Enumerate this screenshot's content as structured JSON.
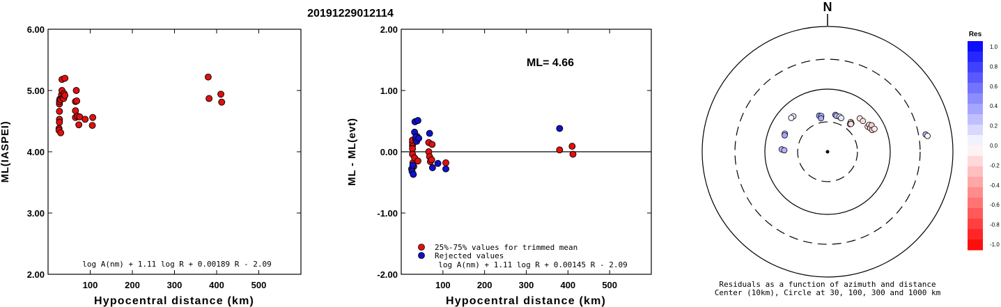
{
  "figure_title": "20191229012114",
  "chart_data": [
    {
      "type": "scatter",
      "xlabel": "Hypocentral distance (km)",
      "ylabel": "ML(IASPEI)",
      "xlim": [
        0,
        600
      ],
      "ylim": [
        2.0,
        6.0
      ],
      "xticks": [
        "100",
        "200",
        "300",
        "400",
        "500"
      ],
      "yticks": [
        "2.00",
        "3.00",
        "4.00",
        "5.00",
        "6.00"
      ],
      "formula": "log A(nm) + 1.11 log R + 0.00189 R - 2.09",
      "series": [
        {
          "color": "#e01010",
          "points": [
            [
              26,
              4.38
            ],
            [
              26,
              4.35
            ],
            [
              27,
              4.53
            ],
            [
              27,
              4.48
            ],
            [
              27,
              4.66
            ],
            [
              27,
              4.78
            ],
            [
              27,
              4.82
            ],
            [
              28,
              4.86
            ],
            [
              30,
              4.31
            ],
            [
              30,
              4.85
            ],
            [
              32,
              4.93
            ],
            [
              33,
              5.18
            ],
            [
              33,
              5.0
            ],
            [
              35,
              4.88
            ],
            [
              37,
              4.87
            ],
            [
              38,
              4.95
            ],
            [
              40,
              5.2
            ],
            [
              40,
              4.92
            ],
            [
              65,
              4.56
            ],
            [
              65,
              4.67
            ],
            [
              65,
              4.82
            ],
            [
              67,
              5.0
            ],
            [
              68,
              4.83
            ],
            [
              70,
              4.58
            ],
            [
              73,
              4.44
            ],
            [
              75,
              4.57
            ],
            [
              88,
              4.53
            ],
            [
              105,
              4.43
            ],
            [
              106,
              4.56
            ],
            [
              380,
              5.22
            ],
            [
              382,
              4.87
            ],
            [
              410,
              4.94
            ],
            [
              412,
              4.81
            ]
          ]
        }
      ]
    },
    {
      "type": "scatter",
      "xlabel": "Hypocentral distance (km)",
      "ylabel": "ML - ML(evt)",
      "xlim": [
        0,
        600
      ],
      "ylim": [
        -2.0,
        2.0
      ],
      "xticks": [
        "100",
        "200",
        "300",
        "400",
        "500"
      ],
      "yticks": [
        "-2.00",
        "-1.00",
        "0.00",
        "1.00",
        "2.00"
      ],
      "annotation": "ML= 4.66",
      "formula": "log A(nm) + 1.11 log R + 0.00145 R - 2.09",
      "legend_position": "bottom-left",
      "series": [
        {
          "name": "25%-75% values for trimmed mean",
          "color": "#e01010",
          "points": [
            [
              27,
              0.1
            ],
            [
              27,
              0.15
            ],
            [
              27,
              0.19
            ],
            [
              27,
              0.05
            ],
            [
              27,
              -0.04
            ],
            [
              28,
              -0.18
            ],
            [
              30,
              -0.24
            ],
            [
              32,
              -0.1
            ],
            [
              35,
              0.2
            ],
            [
              38,
              0.25
            ],
            [
              40,
              -0.15
            ],
            [
              66,
              0.15
            ],
            [
              66,
              0.0
            ],
            [
              68,
              -0.08
            ],
            [
              70,
              -0.16
            ],
            [
              73,
              -0.13
            ],
            [
              74,
              0.12
            ],
            [
              107,
              -0.18
            ],
            [
              380,
              0.03
            ],
            [
              410,
              0.09
            ],
            [
              412,
              -0.04
            ]
          ]
        },
        {
          "name": "Rejected values",
          "color": "#1010cc",
          "points": [
            [
              25,
              -0.28
            ],
            [
              26,
              -0.32
            ],
            [
              28,
              -0.22
            ],
            [
              29,
              -0.37
            ],
            [
              32,
              0.32
            ],
            [
              33,
              0.49
            ],
            [
              35,
              0.24
            ],
            [
              37,
              0.17
            ],
            [
              40,
              0.51
            ],
            [
              42,
              0.22
            ],
            [
              68,
              0.3
            ],
            [
              75,
              -0.26
            ],
            [
              88,
              -0.19
            ],
            [
              107,
              -0.28
            ],
            [
              380,
              0.38
            ]
          ]
        }
      ]
    },
    {
      "type": "polar-scatter",
      "north_label": "N",
      "caption_line1": "Residuals as a function of azimuth and distance",
      "caption_line2": "Center (10km), Circle at 30, 100, 300 and 1000 km",
      "rings_km": [
        30,
        100,
        300,
        1000
      ],
      "colorbar_title": "Res",
      "colorbar_ticks": [
        "1.0",
        "0.8",
        "0.6",
        "0.4",
        "0.2",
        "0.0",
        "-0.2",
        "-0.4",
        "-0.6",
        "-0.8",
        "-1.0"
      ],
      "note": "points given as azimuth (deg) and distance (km), with residual value",
      "points": [
        [
          -44,
          61,
          0.1
        ],
        [
          -47,
          62,
          0.05
        ],
        [
          -67,
          55,
          0.3
        ],
        [
          -69,
          54,
          0.35
        ],
        [
          -87,
          54,
          0.3
        ],
        [
          -88,
          49,
          0.3
        ],
        [
          -13,
          39,
          0.35
        ],
        [
          -10,
          38,
          0.3
        ],
        [
          -11,
          35,
          0.35
        ],
        [
          12,
          40,
          0.35
        ],
        [
          14,
          39,
          0.3
        ],
        [
          19,
          39,
          0.1
        ],
        [
          22,
          38,
          0.1
        ],
        [
          38,
          40,
          -0.1
        ],
        [
          39,
          37,
          -0.15
        ],
        [
          40,
          39,
          -0.12
        ],
        [
          40,
          38,
          -0.14
        ],
        [
          44,
          55,
          -0.1
        ],
        [
          49,
          56,
          -0.15
        ],
        [
          58,
          57,
          -0.15
        ],
        [
          57,
          62,
          -0.12
        ],
        [
          61,
          60,
          -0.15
        ],
        [
          59,
          66,
          -0.2
        ],
        [
          64,
          62,
          -0.2
        ],
        [
          64,
          68,
          -0.1
        ],
        [
          80,
          388,
          0.3
        ],
        [
          81,
          412,
          -0.05
        ]
      ]
    }
  ]
}
